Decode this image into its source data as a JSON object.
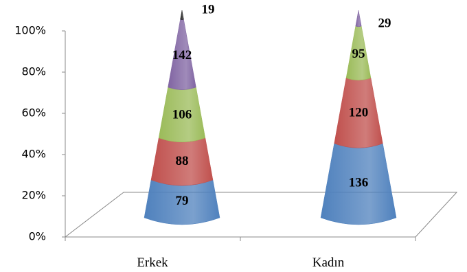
{
  "chart_data": {
    "type": "cone-stacked-100",
    "categories": [
      "Erkek",
      "Kadın"
    ],
    "series": [
      {
        "color": "#4f81bd",
        "values": [
          79,
          136
        ]
      },
      {
        "color": "#c0504d",
        "values": [
          88,
          120
        ]
      },
      {
        "color": "#9bbb59",
        "values": [
          106,
          95
        ]
      },
      {
        "color": "#8064a2",
        "values": [
          142,
          29
        ]
      },
      {
        "color": "#1f1f1f",
        "values": [
          19,
          null
        ]
      }
    ],
    "ylim": [
      0,
      100
    ],
    "yticks": [
      {
        "value": 0,
        "label": "0%"
      },
      {
        "value": 20,
        "label": "20%"
      },
      {
        "value": 40,
        "label": "40%"
      },
      {
        "value": 60,
        "label": "60%"
      },
      {
        "value": 80,
        "label": "80%"
      },
      {
        "value": 100,
        "label": "100%"
      }
    ]
  }
}
